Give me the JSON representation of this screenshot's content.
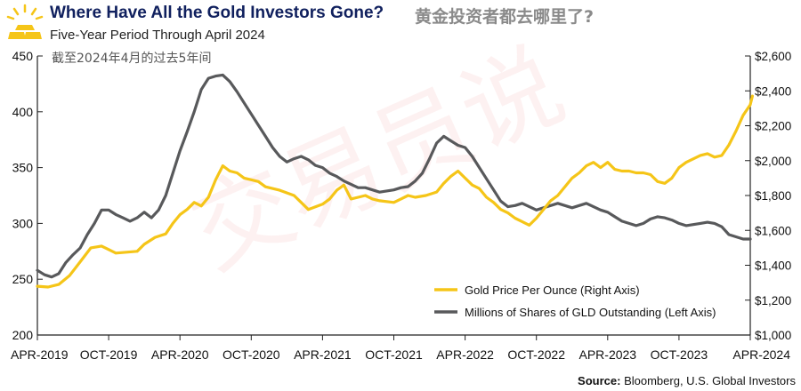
{
  "header": {
    "title": "Where Have All the Gold Investors Gone?",
    "title_cn": "黄金投资者都去哪里了?",
    "subtitle": "Five-Year Period Through April 2024",
    "subtitle_cn": "截至2024年4月的过去5年间",
    "source_label": "Source:",
    "source_text": "Bloomberg, U.S. Global Investors",
    "watermark": "交易员说"
  },
  "colors": {
    "gold": "#f5c518",
    "shares": "#58595b",
    "axis": "#222222",
    "title": "#10205e"
  },
  "chart_data": {
    "type": "line",
    "x_labels": [
      "APR-2019",
      "OCT-2019",
      "APR-2020",
      "OCT-2020",
      "APR-2021",
      "OCT-2021",
      "APR-2022",
      "OCT-2022",
      "APR-2023",
      "OCT-2023",
      "APR-2024"
    ],
    "x": [
      0,
      1,
      2,
      3,
      4,
      5,
      6,
      7,
      8,
      9,
      10
    ],
    "left_axis": {
      "label": "Millions of Shares of GLD Outstanding",
      "range": [
        200,
        450
      ],
      "ticks": [
        "200",
        "250",
        "300",
        "350",
        "400",
        "450"
      ]
    },
    "right_axis": {
      "label": "Gold Price Per Ounce",
      "range": [
        1000,
        2600
      ],
      "ticks": [
        "$1,000",
        "$1,200",
        "$1,400",
        "$1,600",
        "$1,800",
        "$2,000",
        "$2,200",
        "$2,400",
        "$2,600"
      ]
    },
    "series": [
      {
        "name": "Gold Price Per Ounce (Right Axis)",
        "axis": "right",
        "points": [
          [
            0,
            1280
          ],
          [
            0.15,
            1275
          ],
          [
            0.3,
            1290
          ],
          [
            0.45,
            1340
          ],
          [
            0.6,
            1420
          ],
          [
            0.75,
            1500
          ],
          [
            0.9,
            1510
          ],
          [
            1.0,
            1490
          ],
          [
            1.1,
            1470
          ],
          [
            1.25,
            1475
          ],
          [
            1.4,
            1480
          ],
          [
            1.5,
            1520
          ],
          [
            1.65,
            1560
          ],
          [
            1.8,
            1580
          ],
          [
            1.9,
            1640
          ],
          [
            2.0,
            1690
          ],
          [
            2.1,
            1720
          ],
          [
            2.2,
            1760
          ],
          [
            2.3,
            1740
          ],
          [
            2.4,
            1790
          ],
          [
            2.5,
            1890
          ],
          [
            2.6,
            1970
          ],
          [
            2.7,
            1940
          ],
          [
            2.8,
            1930
          ],
          [
            2.9,
            1900
          ],
          [
            3.0,
            1890
          ],
          [
            3.1,
            1880
          ],
          [
            3.2,
            1850
          ],
          [
            3.4,
            1830
          ],
          [
            3.6,
            1800
          ],
          [
            3.7,
            1760
          ],
          [
            3.8,
            1720
          ],
          [
            4.0,
            1750
          ],
          [
            4.1,
            1780
          ],
          [
            4.2,
            1830
          ],
          [
            4.3,
            1860
          ],
          [
            4.4,
            1780
          ],
          [
            4.5,
            1790
          ],
          [
            4.6,
            1800
          ],
          [
            4.7,
            1780
          ],
          [
            4.8,
            1770
          ],
          [
            5.0,
            1760
          ],
          [
            5.1,
            1780
          ],
          [
            5.2,
            1800
          ],
          [
            5.3,
            1790
          ],
          [
            5.45,
            1800
          ],
          [
            5.6,
            1820
          ],
          [
            5.7,
            1870
          ],
          [
            5.8,
            1910
          ],
          [
            5.9,
            1940
          ],
          [
            6.0,
            1900
          ],
          [
            6.1,
            1860
          ],
          [
            6.2,
            1840
          ],
          [
            6.3,
            1790
          ],
          [
            6.4,
            1760
          ],
          [
            6.5,
            1720
          ],
          [
            6.6,
            1700
          ],
          [
            6.7,
            1670
          ],
          [
            6.8,
            1650
          ],
          [
            6.9,
            1630
          ],
          [
            7.0,
            1670
          ],
          [
            7.1,
            1720
          ],
          [
            7.2,
            1770
          ],
          [
            7.3,
            1800
          ],
          [
            7.4,
            1850
          ],
          [
            7.5,
            1900
          ],
          [
            7.6,
            1930
          ],
          [
            7.7,
            1970
          ],
          [
            7.8,
            1990
          ],
          [
            7.9,
            1960
          ],
          [
            8.0,
            1990
          ],
          [
            8.1,
            1950
          ],
          [
            8.2,
            1940
          ],
          [
            8.3,
            1940
          ],
          [
            8.4,
            1930
          ],
          [
            8.5,
            1930
          ],
          [
            8.6,
            1920
          ],
          [
            8.7,
            1880
          ],
          [
            8.8,
            1870
          ],
          [
            8.9,
            1900
          ],
          [
            9.0,
            1960
          ],
          [
            9.1,
            1990
          ],
          [
            9.2,
            2010
          ],
          [
            9.3,
            2030
          ],
          [
            9.4,
            2040
          ],
          [
            9.5,
            2020
          ],
          [
            9.6,
            2030
          ],
          [
            9.7,
            2090
          ],
          [
            9.8,
            2170
          ],
          [
            9.9,
            2260
          ],
          [
            10.0,
            2320
          ],
          [
            10.03,
            2370
          ]
        ]
      },
      {
        "name": "Millions of Shares of GLD Outstanding (Left Axis)",
        "axis": "left",
        "points": [
          [
            0,
            258
          ],
          [
            0.1,
            254
          ],
          [
            0.2,
            252
          ],
          [
            0.3,
            255
          ],
          [
            0.4,
            265
          ],
          [
            0.5,
            272
          ],
          [
            0.6,
            278
          ],
          [
            0.7,
            290
          ],
          [
            0.8,
            300
          ],
          [
            0.9,
            312
          ],
          [
            1.0,
            312
          ],
          [
            1.1,
            308
          ],
          [
            1.2,
            305
          ],
          [
            1.3,
            302
          ],
          [
            1.4,
            305
          ],
          [
            1.5,
            310
          ],
          [
            1.6,
            305
          ],
          [
            1.7,
            312
          ],
          [
            1.8,
            325
          ],
          [
            1.9,
            345
          ],
          [
            2.0,
            365
          ],
          [
            2.1,
            382
          ],
          [
            2.2,
            400
          ],
          [
            2.3,
            420
          ],
          [
            2.4,
            430
          ],
          [
            2.5,
            432
          ],
          [
            2.6,
            433
          ],
          [
            2.7,
            427
          ],
          [
            2.8,
            418
          ],
          [
            2.9,
            408
          ],
          [
            3.0,
            398
          ],
          [
            3.1,
            388
          ],
          [
            3.2,
            378
          ],
          [
            3.3,
            368
          ],
          [
            3.4,
            360
          ],
          [
            3.5,
            355
          ],
          [
            3.6,
            358
          ],
          [
            3.7,
            360
          ],
          [
            3.8,
            357
          ],
          [
            3.9,
            352
          ],
          [
            4.0,
            350
          ],
          [
            4.1,
            345
          ],
          [
            4.2,
            342
          ],
          [
            4.3,
            338
          ],
          [
            4.4,
            335
          ],
          [
            4.5,
            332
          ],
          [
            4.6,
            332
          ],
          [
            4.7,
            330
          ],
          [
            4.8,
            328
          ],
          [
            5.0,
            330
          ],
          [
            5.1,
            332
          ],
          [
            5.2,
            333
          ],
          [
            5.3,
            338
          ],
          [
            5.4,
            345
          ],
          [
            5.5,
            358
          ],
          [
            5.6,
            372
          ],
          [
            5.7,
            378
          ],
          [
            5.8,
            374
          ],
          [
            5.9,
            370
          ],
          [
            6.0,
            368
          ],
          [
            6.1,
            360
          ],
          [
            6.2,
            350
          ],
          [
            6.3,
            340
          ],
          [
            6.4,
            330
          ],
          [
            6.5,
            320
          ],
          [
            6.6,
            315
          ],
          [
            6.7,
            316
          ],
          [
            6.8,
            318
          ],
          [
            6.9,
            315
          ],
          [
            7.0,
            312
          ],
          [
            7.1,
            314
          ],
          [
            7.2,
            316
          ],
          [
            7.3,
            318
          ],
          [
            7.4,
            316
          ],
          [
            7.5,
            314
          ],
          [
            7.6,
            316
          ],
          [
            7.7,
            318
          ],
          [
            7.8,
            315
          ],
          [
            7.9,
            312
          ],
          [
            8.0,
            310
          ],
          [
            8.1,
            306
          ],
          [
            8.2,
            302
          ],
          [
            8.3,
            300
          ],
          [
            8.4,
            298
          ],
          [
            8.5,
            300
          ],
          [
            8.6,
            304
          ],
          [
            8.7,
            306
          ],
          [
            8.8,
            305
          ],
          [
            8.9,
            303
          ],
          [
            9.0,
            300
          ],
          [
            9.1,
            298
          ],
          [
            9.2,
            299
          ],
          [
            9.3,
            300
          ],
          [
            9.4,
            301
          ],
          [
            9.5,
            300
          ],
          [
            9.6,
            297
          ],
          [
            9.7,
            290
          ],
          [
            9.8,
            288
          ],
          [
            9.9,
            286
          ],
          [
            10.0,
            286
          ]
        ]
      }
    ],
    "legend_position": "bottom-right"
  }
}
